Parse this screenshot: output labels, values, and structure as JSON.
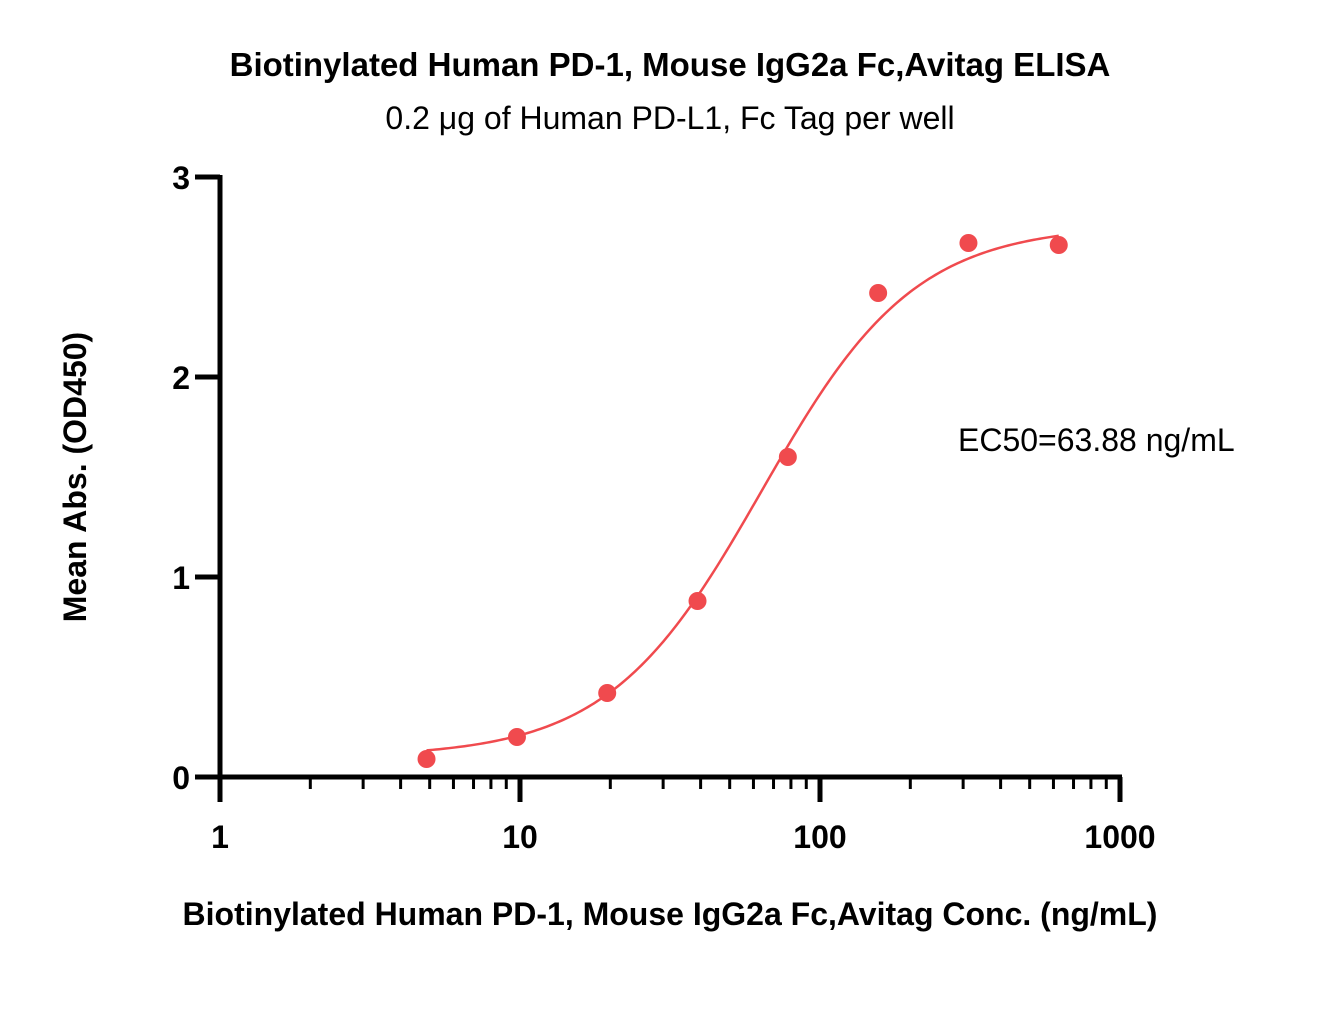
{
  "chart_data": {
    "type": "scatter",
    "title": "Biotinylated Human PD-1, Mouse IgG2a Fc,Avitag ELISA",
    "subtitle": "0.2 μg of Human PD-L1, Fc Tag per well",
    "xlabel": "Biotinylated Human PD-1, Mouse IgG2a Fc,Avitag Conc. (ng/mL)",
    "ylabel": "Mean Abs. (OD450)",
    "x_scale": "log",
    "xlim": [
      1,
      1000
    ],
    "ylim": [
      0,
      3
    ],
    "x_ticks": [
      1,
      10,
      100,
      1000
    ],
    "x_tick_labels": [
      "1",
      "10",
      "100",
      "1000"
    ],
    "y_ticks": [
      0,
      1,
      2,
      3
    ],
    "y_tick_labels": [
      "0",
      "1",
      "2",
      "3"
    ],
    "grid": false,
    "series": [
      {
        "x": [
          4.88,
          9.77,
          19.53,
          39.06,
          78.13,
          156.25,
          312.5,
          625
        ],
        "y": [
          0.09,
          0.2,
          0.42,
          0.88,
          1.6,
          2.42,
          2.67,
          2.66
        ],
        "color": "#f04a4e",
        "fit": "four-parameter logistic"
      }
    ],
    "fit_curve": {
      "bottom": 0.1,
      "top": 2.76,
      "ec50": 63.88,
      "hill": 1.7,
      "x_range": [
        4.88,
        625
      ]
    },
    "annotations": [
      {
        "text": "EC50=63.88 ng/mL"
      }
    ]
  }
}
